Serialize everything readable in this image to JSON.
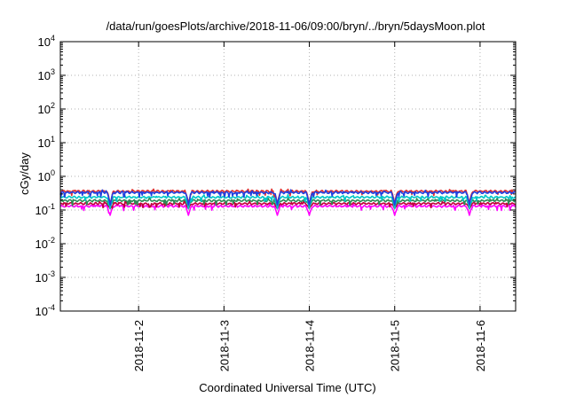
{
  "chart_data": {
    "type": "line",
    "title": "/data/run/goesPlots/archive/2018-11-06/09:00/bryn/../bryn/5daysMoon.plot",
    "xlabel": "Coordinated Universal Time (UTC)",
    "ylabel": "cGy/day",
    "y_scale": "log",
    "ylim": [
      0.0001,
      10000
    ],
    "xlim": [
      "2018-11-01T02:00",
      "2018-11-06T10:00"
    ],
    "grid": true,
    "legend": "none",
    "y_ticks": [
      {
        "base": "10",
        "exp": "-4",
        "value": 0.0001
      },
      {
        "base": "10",
        "exp": "-3",
        "value": 0.001
      },
      {
        "base": "10",
        "exp": "-2",
        "value": 0.01
      },
      {
        "base": "10",
        "exp": "-1",
        "value": 0.1
      },
      {
        "base": "10",
        "exp": "0",
        "value": 1
      },
      {
        "base": "10",
        "exp": "1",
        "value": 10
      },
      {
        "base": "10",
        "exp": "2",
        "value": 100
      },
      {
        "base": "10",
        "exp": "3",
        "value": 1000
      },
      {
        "base": "10",
        "exp": "4",
        "value": 10000
      }
    ],
    "x_ticks": [
      {
        "label": "2018-11-2",
        "value": "2018-11-02T00:00"
      },
      {
        "label": "2018-11-3",
        "value": "2018-11-03T00:00"
      },
      {
        "label": "2018-11-4",
        "value": "2018-11-04T00:00"
      },
      {
        "label": "2018-11-5",
        "value": "2018-11-05T00:00"
      },
      {
        "label": "2018-11-6",
        "value": "2018-11-06T00:00"
      }
    ],
    "dips": [
      "2018-11-01T16:00",
      "2018-11-02T14:00",
      "2018-11-03T15:00",
      "2018-11-04T00:00",
      "2018-11-05T00:00",
      "2018-11-05T21:00"
    ],
    "series": [
      {
        "color": "#ff00ff",
        "level": 0.13,
        "dip_min": 0.07
      },
      {
        "color": "#c0003a",
        "level": 0.155,
        "dip_min": 0.11
      },
      {
        "color": "#2e8b57",
        "level": 0.19,
        "dip_min": 0.13
      },
      {
        "color": "#00c8c8",
        "level": 0.24,
        "dip_min": 0.11
      },
      {
        "color": "#e03030",
        "level": 0.36,
        "dip_min": 0.15
      },
      {
        "color": "#2040e0",
        "level": 0.33,
        "dip_min": 0.14
      }
    ]
  }
}
